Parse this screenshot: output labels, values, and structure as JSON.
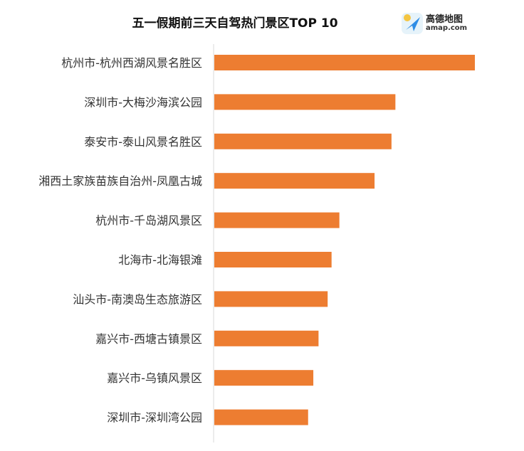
{
  "logo": {
    "brand": "高德地图",
    "url": "amap.com"
  },
  "chart_data": {
    "type": "bar",
    "orientation": "horizontal",
    "title": "五一假期前三天自驾热门景区TOP 10",
    "categories": [
      "杭州市-杭州西湖风景名胜区",
      "深圳市-大梅沙海滨公园",
      "泰安市-泰山风景名胜区",
      "湘西土家族苗族自治州-凤凰古城",
      "杭州市-千岛湖风景区",
      "北海市-北海银滩",
      "汕头市-南澳岛生态旅游区",
      "嘉兴市-西塘古镇景区",
      "嘉兴市-乌镇风景区",
      "深圳市-深圳湾公园"
    ],
    "values": [
      100,
      69.5,
      68,
      61.5,
      48,
      45,
      43.5,
      40,
      38,
      36
    ],
    "xlim": [
      0,
      100
    ],
    "bar_color": "#ED7D31",
    "grid": false,
    "legend": "none"
  }
}
